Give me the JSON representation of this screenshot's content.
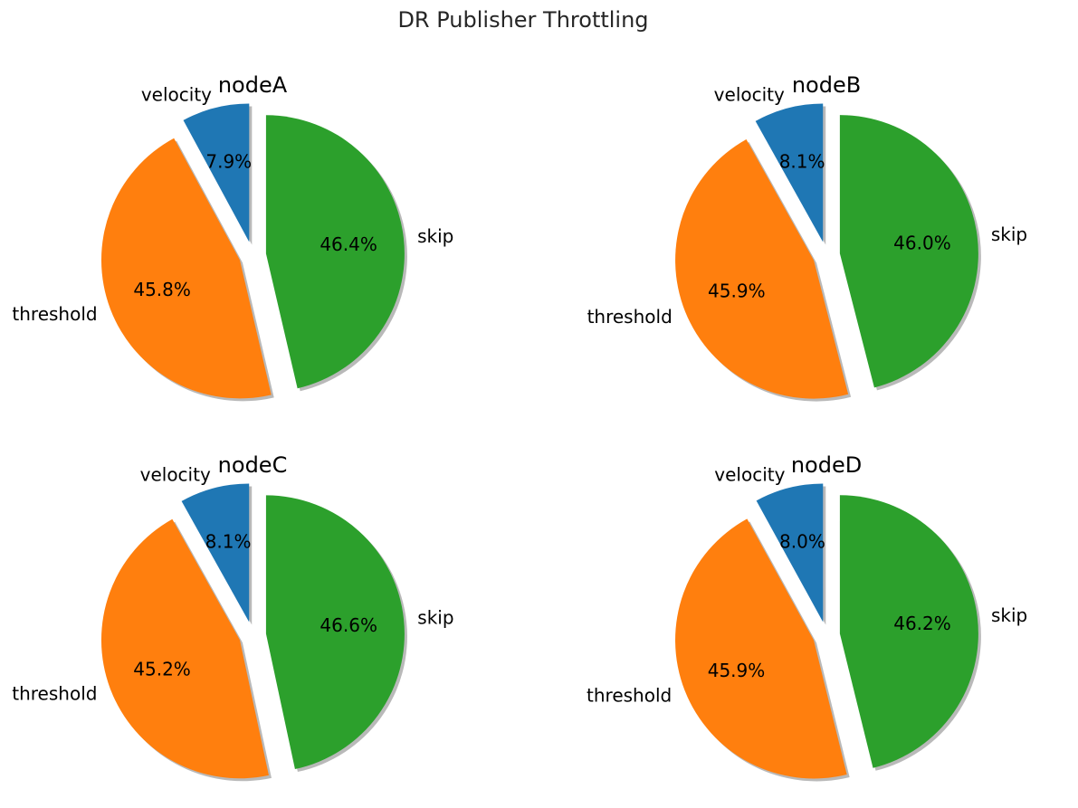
{
  "chart_data": {
    "title": "DR Publisher Throttling",
    "type": "pie",
    "labels": [
      "velocity",
      "threshold",
      "skip"
    ],
    "colors": [
      "#1f77b4",
      "#ff7f0e",
      "#2ca02c"
    ],
    "explode": true,
    "shadow": true,
    "pies": [
      {
        "title": "nodeA",
        "values": [
          7.9,
          45.8,
          46.4
        ],
        "pct_labels": [
          "7.9%",
          "45.8%",
          "46.4%"
        ]
      },
      {
        "title": "nodeB",
        "values": [
          8.1,
          45.9,
          46.0
        ],
        "pct_labels": [
          "8.1%",
          "45.9%",
          "46.0%"
        ]
      },
      {
        "title": "nodeC",
        "values": [
          8.1,
          45.2,
          46.6
        ],
        "pct_labels": [
          "8.1%",
          "45.2%",
          "46.6%"
        ]
      },
      {
        "title": "nodeD",
        "values": [
          8.0,
          45.9,
          46.2
        ],
        "pct_labels": [
          "8.0%",
          "45.9%",
          "46.2%"
        ]
      }
    ]
  }
}
